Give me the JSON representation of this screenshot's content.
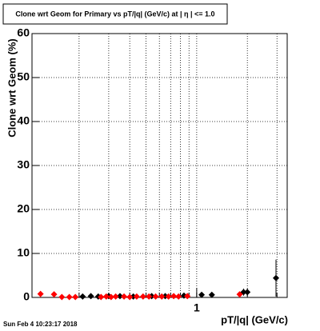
{
  "chart_data": {
    "type": "scatter",
    "title": "Clone wrt Geom for Primary vs pT/|q| (GeV/c) at |  η | <= 1.0",
    "x_label": "pT/|q| (GeV/c)",
    "y_label": "Clone wrt Geom (%)",
    "footer": "Sun Feb  4 10:23:17 2018",
    "log_x": true,
    "grid": true,
    "xlim": [
      0.105,
      3.45
    ],
    "xticks": [
      1
    ],
    "xgrid": [
      0.2,
      0.3,
      0.4,
      0.5,
      0.6,
      0.7,
      0.8,
      0.9,
      1,
      2,
      3
    ],
    "ylim": [
      0,
      60
    ],
    "yticks": [
      0,
      10,
      20,
      30,
      40,
      50,
      60
    ],
    "series": [
      {
        "name": "black",
        "color": "#000000",
        "x": [
          0.21,
          0.235,
          0.26,
          0.3,
          0.35,
          0.42,
          0.54,
          0.65,
          0.84,
          1.07,
          1.23,
          1.9,
          2.0,
          2.96
        ],
        "values": [
          0.2,
          0.3,
          0.2,
          0.3,
          0.3,
          0.2,
          0.3,
          0.3,
          0.4,
          0.6,
          0.6,
          1.2,
          1.2,
          4.4
        ],
        "errors": [
          0.2,
          0.2,
          0.2,
          0.2,
          0.2,
          0.2,
          0.2,
          0.3,
          0.3,
          0.5,
          0.5,
          0.8,
          0.8,
          4.2
        ]
      },
      {
        "name": "red",
        "color": "#ff0000",
        "x": [
          0.118,
          0.142,
          0.158,
          0.175,
          0.19,
          0.27,
          0.29,
          0.31,
          0.33,
          0.37,
          0.4,
          0.44,
          0.48,
          0.52,
          0.57,
          0.62,
          0.68,
          0.73,
          0.78,
          0.88,
          1.8
        ],
        "values": [
          0.8,
          0.7,
          0.1,
          0.1,
          0.1,
          0.1,
          0.2,
          0.1,
          0.2,
          0.2,
          0.1,
          0.2,
          0.2,
          0.2,
          0.2,
          0.2,
          0.2,
          0.3,
          0.2,
          0.3,
          0.7
        ],
        "errors": [
          0.4,
          0.4,
          0.1,
          0.1,
          0.1,
          0.1,
          0.1,
          0.1,
          0.1,
          0.1,
          0.1,
          0.1,
          0.1,
          0.1,
          0.1,
          0.1,
          0.1,
          0.2,
          0.1,
          0.2,
          0.5
        ]
      }
    ]
  }
}
